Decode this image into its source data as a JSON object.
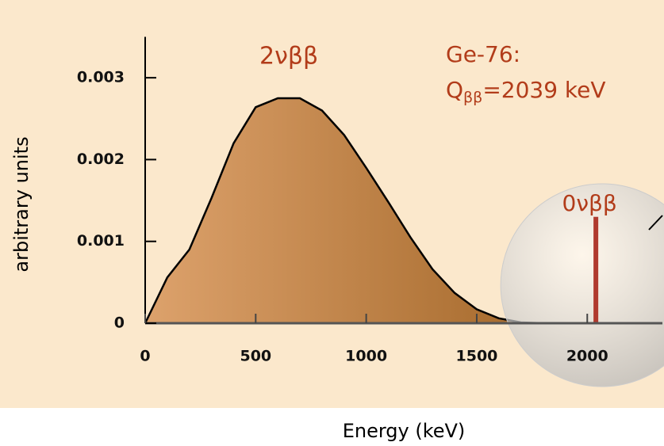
{
  "chart_data": {
    "type": "area",
    "x_label": "Energy (keV)",
    "y_label": "arbitrary units",
    "series": [
      {
        "name": "2νββ",
        "color": "#000000",
        "gradient": [
          "#dda26c",
          "#a4682a"
        ],
        "x": [
          0,
          100,
          200,
          300,
          400,
          500,
          600,
          700,
          800,
          900,
          1000,
          1100,
          1200,
          1300,
          1400,
          1500,
          1600,
          1700,
          1800
        ],
        "values": [
          0,
          0.00056,
          0.0009,
          0.00153,
          0.0022,
          0.00264,
          0.00275,
          0.00275,
          0.0026,
          0.0023,
          0.0019,
          0.00148,
          0.00105,
          0.00066,
          0.00037,
          0.00017,
          6e-05,
          1e-05,
          0
        ]
      },
      {
        "name": "0νββ",
        "color": "#b03a2e",
        "x": [
          2039
        ],
        "values": [
          0.0013
        ]
      }
    ],
    "annotations": [
      "Ge-76:",
      "Q",
      "ββ",
      "=2039 keV"
    ],
    "xlim": [
      0,
      2340
    ],
    "ylim": [
      0,
      0.0035
    ],
    "xticks": [
      0,
      500,
      1000,
      1500,
      2000
    ],
    "yticks": [
      0,
      0.001,
      0.002,
      0.003
    ],
    "background": "#fbe8cc",
    "label_color": "#b23c1a"
  }
}
